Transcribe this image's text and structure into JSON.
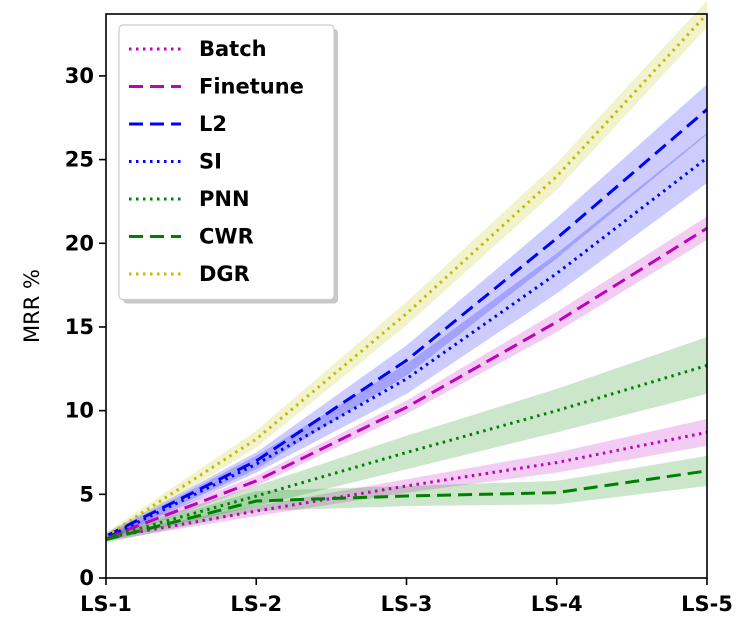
{
  "chart_data": {
    "type": "line",
    "title": "",
    "xlabel": "",
    "ylabel": "MRR %",
    "categories": [
      "LS-1",
      "LS-2",
      "LS-3",
      "LS-4",
      "LS-5"
    ],
    "ylim": [
      0,
      33.7
    ],
    "yticks": [
      0,
      5,
      10,
      15,
      20,
      25,
      30
    ],
    "legend_position": "top-left",
    "series": [
      {
        "name": "Batch",
        "color": "#bf00bf",
        "style": "dotted",
        "values": [
          2.4,
          4.0,
          5.5,
          6.9,
          8.7
        ],
        "band": [
          0.2,
          0.3,
          0.4,
          0.6,
          0.8
        ]
      },
      {
        "name": "Finetune",
        "color": "#bf00bf",
        "style": "dashed",
        "values": [
          2.4,
          5.8,
          10.2,
          15.3,
          20.9
        ],
        "band": [
          0.2,
          0.3,
          0.4,
          0.6,
          0.7
        ]
      },
      {
        "name": "L2",
        "color": "#0000ff",
        "style": "dashed",
        "values": [
          2.5,
          7.0,
          13.0,
          20.3,
          28.0
        ],
        "band": [
          0.2,
          0.5,
          0.9,
          1.2,
          1.5
        ]
      },
      {
        "name": "SI",
        "color": "#0000ff",
        "style": "dotted",
        "values": [
          2.4,
          6.8,
          11.9,
          18.2,
          25.1
        ],
        "band": [
          0.2,
          0.5,
          0.9,
          1.2,
          1.5
        ]
      },
      {
        "name": "PNN",
        "color": "#008000",
        "style": "dotted",
        "values": [
          2.4,
          4.9,
          7.5,
          10.0,
          12.7
        ],
        "band": [
          0.2,
          0.6,
          1.0,
          1.3,
          1.7
        ]
      },
      {
        "name": "CWR",
        "color": "#008000",
        "style": "dashed",
        "values": [
          2.3,
          4.6,
          4.9,
          5.1,
          6.4
        ],
        "band": [
          0.2,
          0.6,
          0.6,
          0.7,
          0.9
        ]
      },
      {
        "name": "DGR",
        "color": "#bfbf00",
        "style": "dotted",
        "values": [
          2.5,
          8.3,
          15.8,
          24.0,
          33.7
        ],
        "band": [
          0.2,
          0.5,
          0.7,
          0.8,
          0.8
        ]
      }
    ]
  }
}
